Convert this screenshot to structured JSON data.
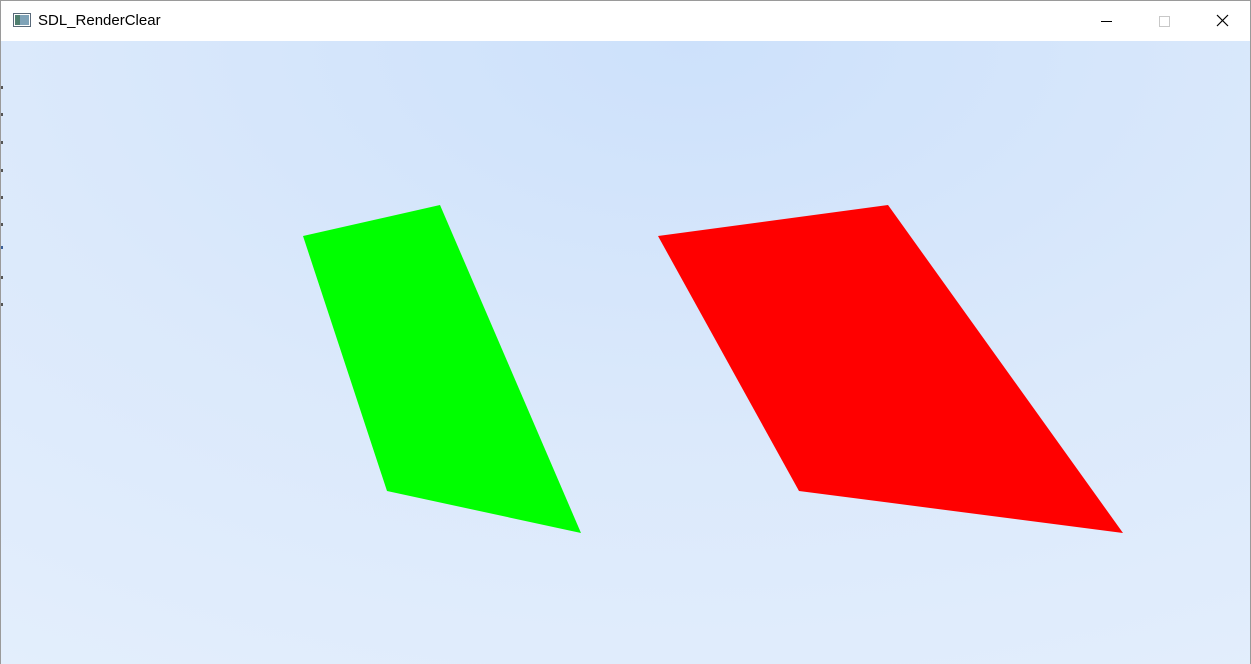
{
  "window": {
    "title": "SDL_RenderClear"
  },
  "controls": {
    "minimize_icon": "minimize-icon",
    "maximize_icon": "maximize-icon",
    "close_icon": "close-icon"
  },
  "scene": {
    "background_top": "#cde1fb",
    "background_bottom": "#e6f0fd",
    "shapes": [
      {
        "name": "green-quad",
        "color": "#00ff00"
      },
      {
        "name": "red-quad",
        "color": "#ff0000"
      }
    ]
  }
}
